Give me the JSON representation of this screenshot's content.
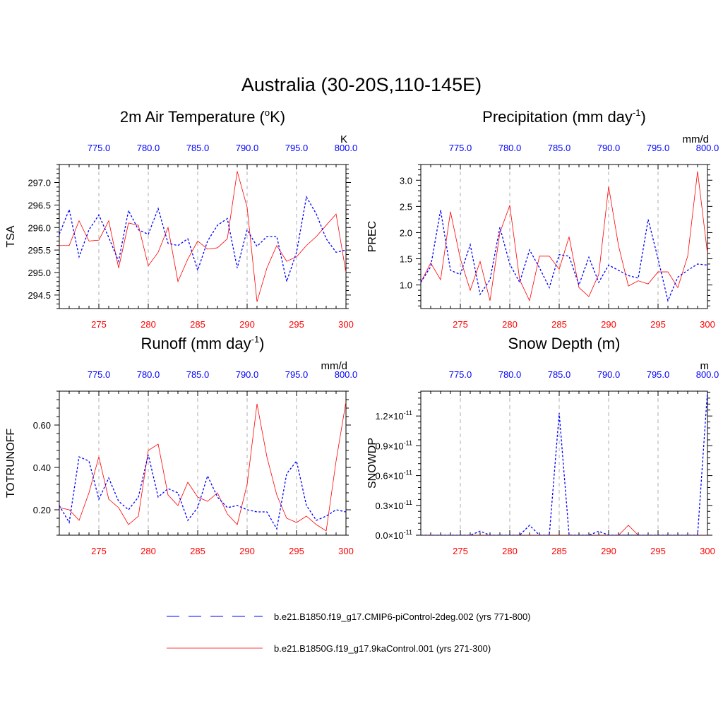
{
  "figure": {
    "title": "Australia (30-20S,110-145E)"
  },
  "legend": {
    "placement": "bottom-center",
    "entries": [
      {
        "label": "b.e21.B1850.f19_g17.CMIP6-piControl-2deg.002 (yrs 771-800)",
        "color": "#0000ff",
        "style": "dashed"
      },
      {
        "label": "b.e21.B1850G.f19_g17.9kaControl.001 (yrs 271-300)",
        "color": "#ff0000",
        "style": "solid"
      }
    ]
  },
  "colors": {
    "bottom_axis": "#ff0000",
    "top_axis": "#0000ff",
    "series_red": "#ff0000",
    "series_blue": "#0000ff",
    "grid": "#999999"
  },
  "chart_data": [
    {
      "type": "line",
      "title_main": "2m Air Temperature (",
      "title_sup": "o",
      "title_tail": "K)",
      "ylabel": "TSA",
      "units": "K",
      "xlim": [
        271,
        300
      ],
      "ylim": [
        294.2,
        297.4
      ],
      "x_ticks": [
        275,
        280,
        285,
        290,
        295,
        300
      ],
      "x_tick_labels": [
        "275",
        "280",
        "285",
        "290",
        "295",
        "300"
      ],
      "top_ticks": [
        275,
        280,
        285,
        290,
        295,
        300
      ],
      "top_tick_labels": [
        "775.0",
        "780.0",
        "785.0",
        "790.0",
        "795.0",
        "800.0"
      ],
      "y_ticks": [
        294.5,
        295.0,
        295.5,
        296.0,
        296.5,
        297.0
      ],
      "y_tick_labels": [
        "294.5",
        "295.0",
        "295.5",
        "296.0",
        "296.5",
        "297.0"
      ],
      "grid": "vertical-dashed",
      "x": [
        271,
        272,
        273,
        274,
        275,
        276,
        277,
        278,
        279,
        280,
        281,
        282,
        283,
        284,
        285,
        286,
        287,
        288,
        289,
        290,
        291,
        292,
        293,
        294,
        295,
        296,
        297,
        298,
        299,
        300
      ],
      "series": [
        {
          "name": "b.e21.B1850G.f19_g17.9kaControl.001 (yrs 271-300)",
          "color": "#ff0000",
          "style": "solid",
          "values": [
            295.6,
            295.6,
            296.15,
            295.7,
            295.72,
            296.15,
            295.1,
            296.1,
            296.05,
            295.15,
            295.45,
            296.0,
            294.8,
            295.3,
            295.7,
            295.52,
            295.55,
            295.75,
            297.25,
            296.45,
            294.35,
            295.1,
            295.6,
            295.25,
            295.35,
            295.6,
            295.8,
            296.05,
            296.3,
            295.0
          ]
        },
        {
          "name": "b.e21.B1850.f19_g17.CMIP6-piControl-2deg.002 (yrs 771-800)",
          "color": "#0000ff",
          "style": "dashed",
          "values": [
            295.85,
            296.4,
            295.35,
            295.95,
            296.28,
            295.78,
            295.25,
            296.38,
            295.95,
            295.85,
            296.42,
            295.65,
            295.6,
            295.75,
            295.05,
            295.7,
            296.05,
            296.2,
            295.1,
            295.95,
            295.58,
            295.8,
            295.8,
            294.8,
            295.45,
            296.68,
            296.3,
            295.75,
            295.45,
            295.5
          ]
        }
      ]
    },
    {
      "type": "line",
      "title_main": "Precipitation (mm day",
      "title_sup": "-1",
      "title_tail": ")",
      "ylabel": "PREC",
      "units": "mm/d",
      "xlim": [
        271,
        300
      ],
      "ylim": [
        0.55,
        3.3
      ],
      "x_ticks": [
        275,
        280,
        285,
        290,
        295,
        300
      ],
      "x_tick_labels": [
        "275",
        "280",
        "285",
        "290",
        "295",
        "300"
      ],
      "top_ticks": [
        275,
        280,
        285,
        290,
        295,
        300
      ],
      "top_tick_labels": [
        "775.0",
        "780.0",
        "785.0",
        "790.0",
        "795.0",
        "800.0"
      ],
      "y_ticks": [
        1.0,
        1.5,
        2.0,
        2.5,
        3.0
      ],
      "y_tick_labels": [
        "1.0",
        "1.5",
        "2.0",
        "2.5",
        "3.0"
      ],
      "grid": "vertical-dashed",
      "x": [
        271,
        272,
        273,
        274,
        275,
        276,
        277,
        278,
        279,
        280,
        281,
        282,
        283,
        284,
        285,
        286,
        287,
        288,
        289,
        290,
        291,
        292,
        293,
        294,
        295,
        296,
        297,
        298,
        299,
        300
      ],
      "series": [
        {
          "name": "b.e21.B1850G.f19_g17.9kaControl.001 (yrs 271-300)",
          "color": "#ff0000",
          "style": "solid",
          "values": [
            1.05,
            1.42,
            1.1,
            2.4,
            1.5,
            0.9,
            1.45,
            0.7,
            2.0,
            2.52,
            1.1,
            0.7,
            1.55,
            1.55,
            1.3,
            1.92,
            0.95,
            0.78,
            1.2,
            2.88,
            1.75,
            0.98,
            1.08,
            1.02,
            1.25,
            1.25,
            0.95,
            1.55,
            3.17,
            1.6
          ]
        },
        {
          "name": "b.e21.B1850.f19_g17.CMIP6-piControl-2deg.002 (yrs 771-800)",
          "color": "#0000ff",
          "style": "dashed",
          "values": [
            1.05,
            1.35,
            2.43,
            1.28,
            1.2,
            1.77,
            0.82,
            1.1,
            2.1,
            1.4,
            1.05,
            1.67,
            1.33,
            0.95,
            1.58,
            1.55,
            1.0,
            1.53,
            1.05,
            1.38,
            1.28,
            1.18,
            1.13,
            2.25,
            1.5,
            0.7,
            1.15,
            1.28,
            1.4,
            1.38
          ]
        }
      ]
    },
    {
      "type": "line",
      "title_main": "Runoff (mm day",
      "title_sup": "-1",
      "title_tail": ")",
      "ylabel": "TOTRUNOFF",
      "units": "mm/d",
      "xlim": [
        271,
        300
      ],
      "ylim": [
        0.08,
        0.76
      ],
      "x_ticks": [
        275,
        280,
        285,
        290,
        295,
        300
      ],
      "x_tick_labels": [
        "275",
        "280",
        "285",
        "290",
        "295",
        "300"
      ],
      "top_ticks": [
        275,
        280,
        285,
        290,
        295,
        300
      ],
      "top_tick_labels": [
        "775.0",
        "780.0",
        "785.0",
        "790.0",
        "795.0",
        "800.0"
      ],
      "y_ticks": [
        0.2,
        0.4,
        0.6
      ],
      "y_tick_labels": [
        "0.20",
        "0.40",
        "0.60"
      ],
      "grid": "vertical-dashed",
      "x": [
        271,
        272,
        273,
        274,
        275,
        276,
        277,
        278,
        279,
        280,
        281,
        282,
        283,
        284,
        285,
        286,
        287,
        288,
        289,
        290,
        291,
        292,
        293,
        294,
        295,
        296,
        297,
        298,
        299,
        300
      ],
      "series": [
        {
          "name": "b.e21.B1850G.f19_g17.9kaControl.001 (yrs 271-300)",
          "color": "#ff0000",
          "style": "solid",
          "values": [
            0.21,
            0.2,
            0.15,
            0.28,
            0.45,
            0.25,
            0.21,
            0.13,
            0.17,
            0.48,
            0.51,
            0.27,
            0.22,
            0.33,
            0.26,
            0.24,
            0.28,
            0.18,
            0.13,
            0.32,
            0.7,
            0.45,
            0.27,
            0.16,
            0.14,
            0.17,
            0.13,
            0.1,
            0.43,
            0.71
          ]
        },
        {
          "name": "b.e21.B1850.f19_g17.CMIP6-piControl-2deg.002 (yrs 771-800)",
          "color": "#0000ff",
          "style": "dashed",
          "values": [
            0.22,
            0.14,
            0.45,
            0.43,
            0.25,
            0.35,
            0.24,
            0.2,
            0.26,
            0.46,
            0.26,
            0.3,
            0.28,
            0.15,
            0.21,
            0.36,
            0.26,
            0.21,
            0.22,
            0.2,
            0.19,
            0.19,
            0.11,
            0.37,
            0.43,
            0.22,
            0.15,
            0.17,
            0.2,
            0.19
          ]
        }
      ]
    },
    {
      "type": "line",
      "title_main": "Snow Depth (m)",
      "title_sup": "",
      "title_tail": "",
      "ylabel": "SNOWDP",
      "units": "m",
      "xlim": [
        271,
        300
      ],
      "ylim": [
        0,
        1.45
      ],
      "y_scale_note": "values in units of 10^-11 m",
      "x_ticks": [
        275,
        280,
        285,
        290,
        295,
        300
      ],
      "x_tick_labels": [
        "275",
        "280",
        "285",
        "290",
        "295",
        "300"
      ],
      "top_ticks": [
        275,
        280,
        285,
        290,
        295,
        300
      ],
      "top_tick_labels": [
        "775.0",
        "780.0",
        "785.0",
        "790.0",
        "795.0",
        "800.0"
      ],
      "y_ticks": [
        0.0,
        0.3,
        0.6,
        0.9,
        1.2
      ],
      "y_tick_mantissa": [
        "0.0",
        "0.3",
        "0.6",
        "0.9",
        "1.2"
      ],
      "y_tick_base": "10",
      "y_tick_exp": "-11",
      "grid": "vertical-dashed",
      "x": [
        271,
        272,
        273,
        274,
        275,
        276,
        277,
        278,
        279,
        280,
        281,
        282,
        283,
        284,
        285,
        286,
        287,
        288,
        289,
        290,
        291,
        292,
        293,
        294,
        295,
        296,
        297,
        298,
        299,
        300
      ],
      "series": [
        {
          "name": "b.e21.B1850G.f19_g17.9kaControl.001 (yrs 271-300)",
          "color": "#ff0000",
          "style": "solid",
          "values": [
            0,
            0,
            0,
            0,
            0,
            0,
            0,
            0,
            0,
            0,
            0,
            0,
            0,
            0,
            0,
            0,
            0,
            0,
            0,
            0,
            0,
            0.1,
            0,
            0,
            0,
            0,
            0,
            0,
            0,
            0
          ]
        },
        {
          "name": "b.e21.B1850.f19_g17.CMIP6-piControl-2deg.002 (yrs 771-800)",
          "color": "#0000ff",
          "style": "dashed",
          "values": [
            0,
            0,
            0,
            0,
            0,
            0,
            0.04,
            0,
            0,
            0,
            0,
            0.1,
            0,
            0,
            1.23,
            0,
            0,
            0,
            0.04,
            0,
            0,
            0,
            0,
            0,
            0,
            0,
            0,
            0,
            0,
            1.45
          ]
        }
      ]
    }
  ]
}
